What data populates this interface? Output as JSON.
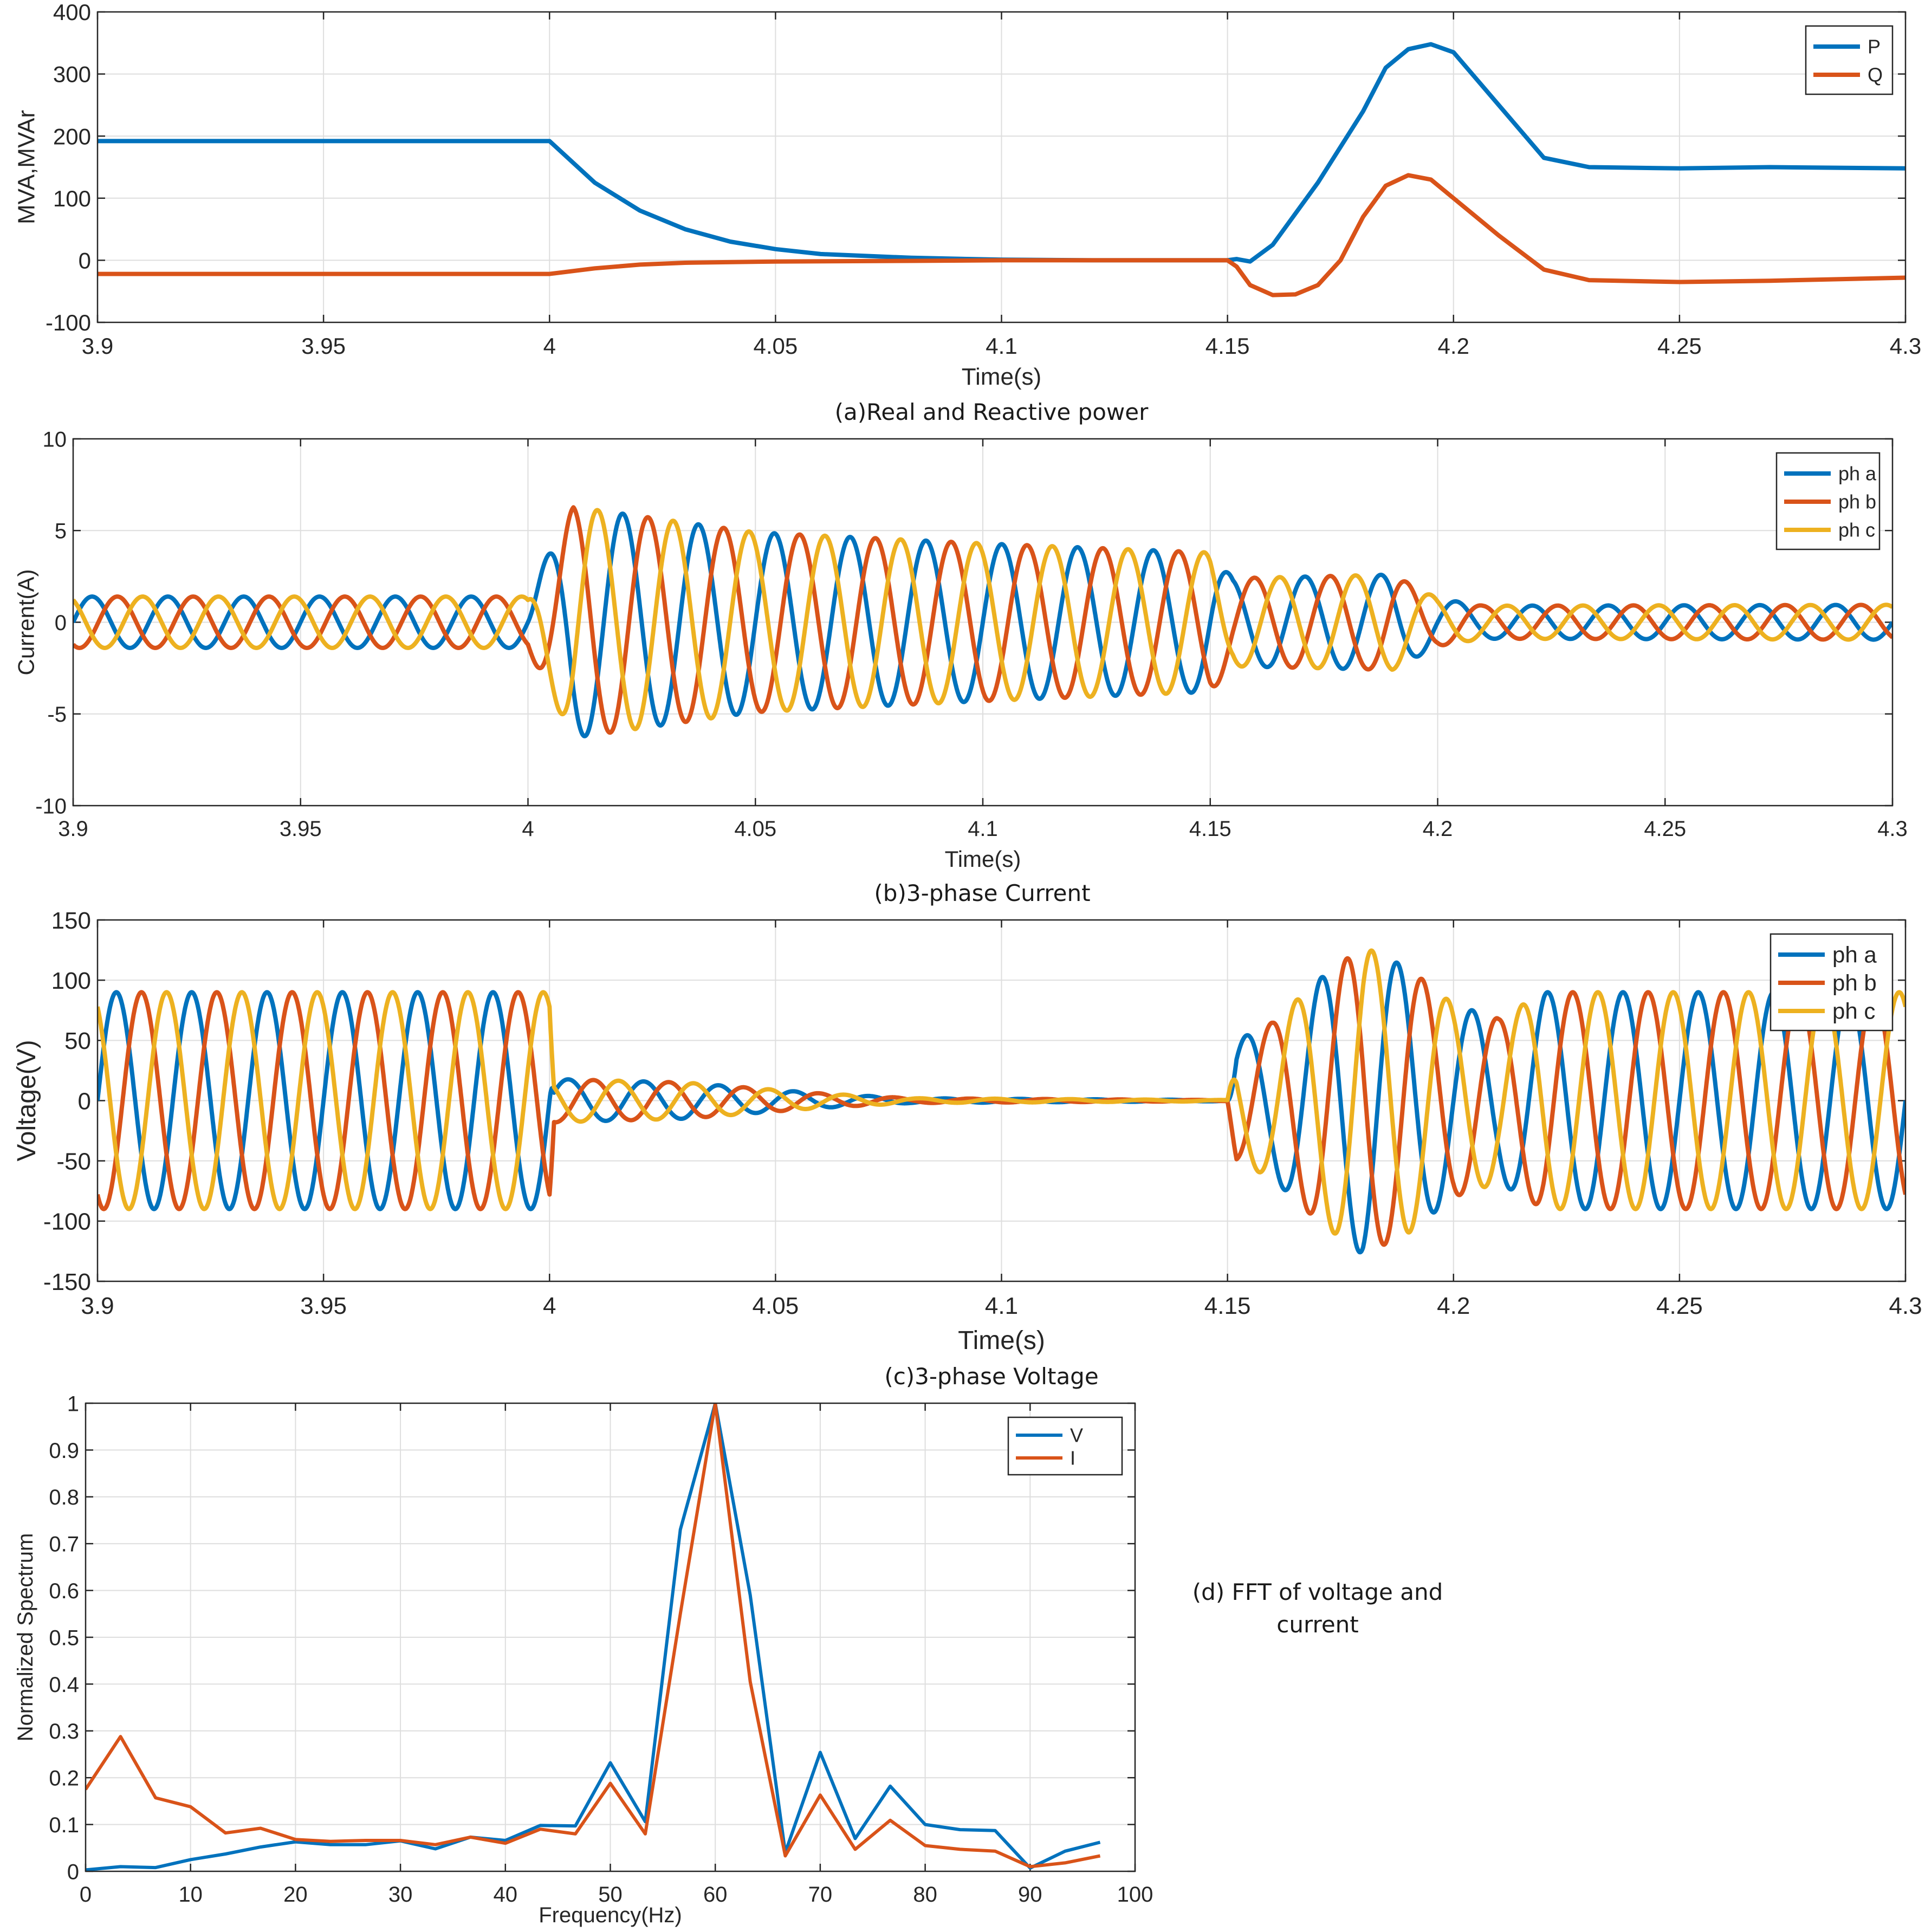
{
  "colors": {
    "blue": "#0072BD",
    "orange": "#D95319",
    "yellow": "#EDB120"
  },
  "chart_data": [
    {
      "id": "panel_a",
      "type": "line",
      "caption": "(a)Real and Reactive power",
      "xlabel": "Time(s)",
      "ylabel": "MVA,MVAr",
      "xlim": [
        3.9,
        4.3
      ],
      "ylim": [
        -100,
        400
      ],
      "xticks": [
        "3.9",
        "3.95",
        "4",
        "4.05",
        "4.1",
        "4.15",
        "4.2",
        "4.25",
        "4.3"
      ],
      "yticks": [
        "-100",
        "0",
        "100",
        "200",
        "300",
        "400"
      ],
      "grid": true,
      "legend_position": "top-right",
      "series": [
        {
          "name": "P",
          "color": "#0072BD",
          "x": [
            3.9,
            3.95,
            4.0,
            4.01,
            4.02,
            4.03,
            4.04,
            4.05,
            4.06,
            4.08,
            4.1,
            4.12,
            4.15,
            4.152,
            4.155,
            4.16,
            4.17,
            4.18,
            4.185,
            4.19,
            4.195,
            4.2,
            4.21,
            4.22,
            4.23,
            4.25,
            4.27,
            4.3
          ],
          "y": [
            192,
            192,
            192,
            125,
            80,
            50,
            30,
            18,
            10,
            4,
            1,
            0,
            0,
            2,
            -2,
            25,
            125,
            240,
            310,
            340,
            348,
            335,
            250,
            165,
            150,
            148,
            150,
            148
          ]
        },
        {
          "name": "Q",
          "color": "#D95319",
          "x": [
            3.9,
            3.95,
            4.0,
            4.01,
            4.02,
            4.03,
            4.05,
            4.08,
            4.1,
            4.15,
            4.152,
            4.155,
            4.16,
            4.165,
            4.17,
            4.175,
            4.18,
            4.185,
            4.19,
            4.195,
            4.2,
            4.21,
            4.22,
            4.23,
            4.25,
            4.27,
            4.3
          ],
          "y": [
            -22,
            -22,
            -22,
            -13,
            -7,
            -4,
            -2,
            -1,
            0,
            0,
            -10,
            -40,
            -56,
            -55,
            -40,
            0,
            70,
            120,
            137,
            130,
            100,
            40,
            -15,
            -32,
            -35,
            -33,
            -28
          ]
        }
      ]
    },
    {
      "id": "panel_b",
      "type": "line",
      "caption": "(b)3-phase Current",
      "xlabel": "Time(s)",
      "ylabel": "Current(A)",
      "xlim": [
        3.9,
        4.3
      ],
      "ylim": [
        -10,
        10
      ],
      "xticks": [
        "3.9",
        "3.95",
        "4",
        "4.05",
        "4.1",
        "4.15",
        "4.2",
        "4.25",
        "4.3"
      ],
      "yticks": [
        "-10",
        "-5",
        "0",
        "5",
        "10"
      ],
      "grid": true,
      "legend_position": "top-right",
      "waveform": {
        "frequency_hz": 60,
        "phase_shift_deg": 120
      },
      "amplitude_envelope": {
        "t": [
          3.9,
          4.0,
          4.003,
          4.01,
          4.05,
          4.1,
          4.15,
          4.155,
          4.19,
          4.2,
          4.21,
          4.3
        ],
        "amplitude": [
          1.4,
          1.4,
          3.0,
          6.3,
          4.9,
          4.3,
          3.8,
          2.4,
          2.6,
          1.3,
          0.9,
          0.95
        ]
      },
      "series": [
        {
          "name": "ph a",
          "color": "#0072BD"
        },
        {
          "name": "ph b",
          "color": "#D95319"
        },
        {
          "name": "ph c",
          "color": "#EDB120"
        }
      ]
    },
    {
      "id": "panel_c",
      "type": "line",
      "caption": "(c)3-phase Voltage",
      "xlabel": "Time(s)",
      "ylabel": "Voltage(V)",
      "xlim": [
        3.9,
        4.3
      ],
      "ylim": [
        -150,
        150
      ],
      "xticks": [
        "3.9",
        "3.95",
        "4",
        "4.05",
        "4.1",
        "4.15",
        "4.2",
        "4.25",
        "4.3"
      ],
      "yticks": [
        "-150",
        "-100",
        "-50",
        "0",
        "50",
        "100",
        "150"
      ],
      "grid": true,
      "legend_position": "top-right",
      "waveform": {
        "frequency_hz": 60,
        "phase_shift_deg": 120
      },
      "amplitude_envelope": {
        "t": [
          3.9,
          4.0,
          4.001,
          4.03,
          4.06,
          4.08,
          4.15,
          4.152,
          4.16,
          4.17,
          4.18,
          4.19,
          4.2,
          4.21,
          4.22,
          4.3
        ],
        "amplitude": [
          90,
          90,
          18,
          15,
          6,
          2,
          0.5,
          50,
          65,
          100,
          128,
          110,
          80,
          68,
          90,
          90
        ]
      },
      "series": [
        {
          "name": "ph a",
          "color": "#0072BD"
        },
        {
          "name": "ph b",
          "color": "#D95319"
        },
        {
          "name": "ph c",
          "color": "#EDB120"
        }
      ]
    },
    {
      "id": "panel_d",
      "type": "line",
      "caption_lines": [
        "(d) FFT of voltage and",
        "current"
      ],
      "xlabel": "Frequency(Hz)",
      "ylabel": "Normalized Spectrum",
      "xlim": [
        0,
        100
      ],
      "ylim": [
        0,
        1
      ],
      "xticks": [
        "0",
        "10",
        "20",
        "30",
        "40",
        "50",
        "60",
        "70",
        "80",
        "90",
        "100"
      ],
      "yticks": [
        "0",
        "0.1",
        "0.2",
        "0.3",
        "0.4",
        "0.5",
        "0.6",
        "0.7",
        "0.8",
        "0.9",
        "1"
      ],
      "grid": true,
      "legend_position": "top-right",
      "x": [
        0,
        3.33,
        6.67,
        10,
        13.33,
        16.67,
        20,
        23.33,
        26.67,
        30,
        33.33,
        36.67,
        40,
        43.33,
        46.67,
        50,
        53.33,
        56.67,
        60,
        63.33,
        66.67,
        70,
        73.33,
        76.67,
        80,
        83.33,
        86.67,
        90,
        93.33,
        96.67
      ],
      "series": [
        {
          "name": "V",
          "color": "#0072BD",
          "values": [
            0.003,
            0.01,
            0.008,
            0.025,
            0.037,
            0.052,
            0.063,
            0.057,
            0.057,
            0.065,
            0.048,
            0.073,
            0.066,
            0.098,
            0.097,
            0.232,
            0.106,
            0.73,
            1.0,
            0.59,
            0.04,
            0.254,
            0.07,
            0.182,
            0.1,
            0.089,
            0.087,
            0.007,
            0.043,
            0.062
          ]
        },
        {
          "name": "I",
          "color": "#D95319",
          "values": [
            0.175,
            0.288,
            0.157,
            0.138,
            0.082,
            0.092,
            0.068,
            0.064,
            0.066,
            0.066,
            0.057,
            0.073,
            0.06,
            0.09,
            0.08,
            0.188,
            0.08,
            0.55,
            1.0,
            0.405,
            0.033,
            0.163,
            0.047,
            0.109,
            0.055,
            0.047,
            0.043,
            0.01,
            0.018,
            0.033
          ]
        }
      ]
    }
  ]
}
